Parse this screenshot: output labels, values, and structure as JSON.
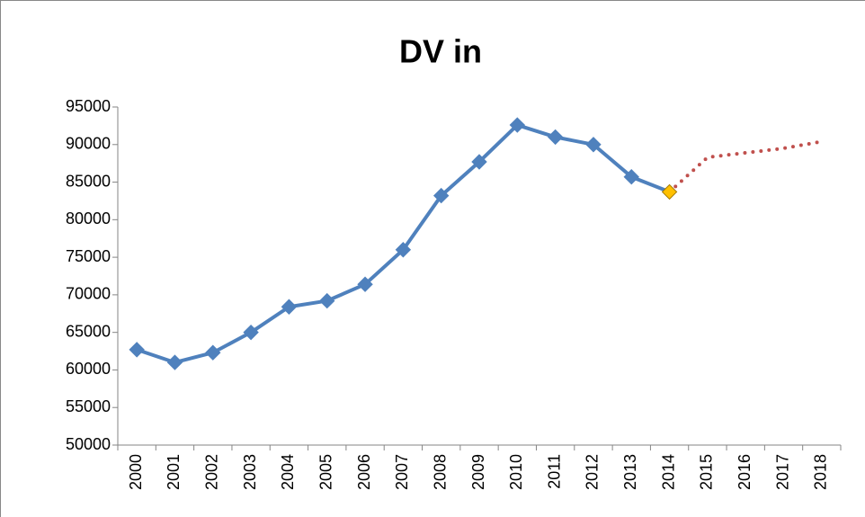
{
  "chart_data": {
    "type": "line",
    "title": "DV in",
    "categories": [
      "2000",
      "2001",
      "2002",
      "2003",
      "2004",
      "2005",
      "2006",
      "2007",
      "2008",
      "2009",
      "2010",
      "2011",
      "2012",
      "2013",
      "2014",
      "2015",
      "2016",
      "2017",
      "2018"
    ],
    "series": [
      {
        "color": "#4f81bd",
        "style": "solid",
        "marker": "diamond",
        "values": [
          62700,
          61000,
          62300,
          65000,
          68400,
          69200,
          71400,
          76000,
          83200,
          87700,
          92600,
          91000,
          90000,
          85700,
          83700,
          null,
          null,
          null,
          null
        ],
        "highlight_index": 14,
        "highlight_color": "#ffc000"
      },
      {
        "color": "#c0504d",
        "style": "dotted",
        "marker": "none",
        "values": [
          null,
          null,
          null,
          null,
          null,
          null,
          null,
          null,
          null,
          null,
          null,
          null,
          null,
          null,
          83700,
          88300,
          88900,
          89500,
          90400
        ]
      }
    ],
    "ylim": [
      50000,
      95000
    ],
    "yticks": [
      50000,
      55000,
      60000,
      65000,
      70000,
      75000,
      80000,
      85000,
      90000,
      95000
    ],
    "grid": false
  }
}
